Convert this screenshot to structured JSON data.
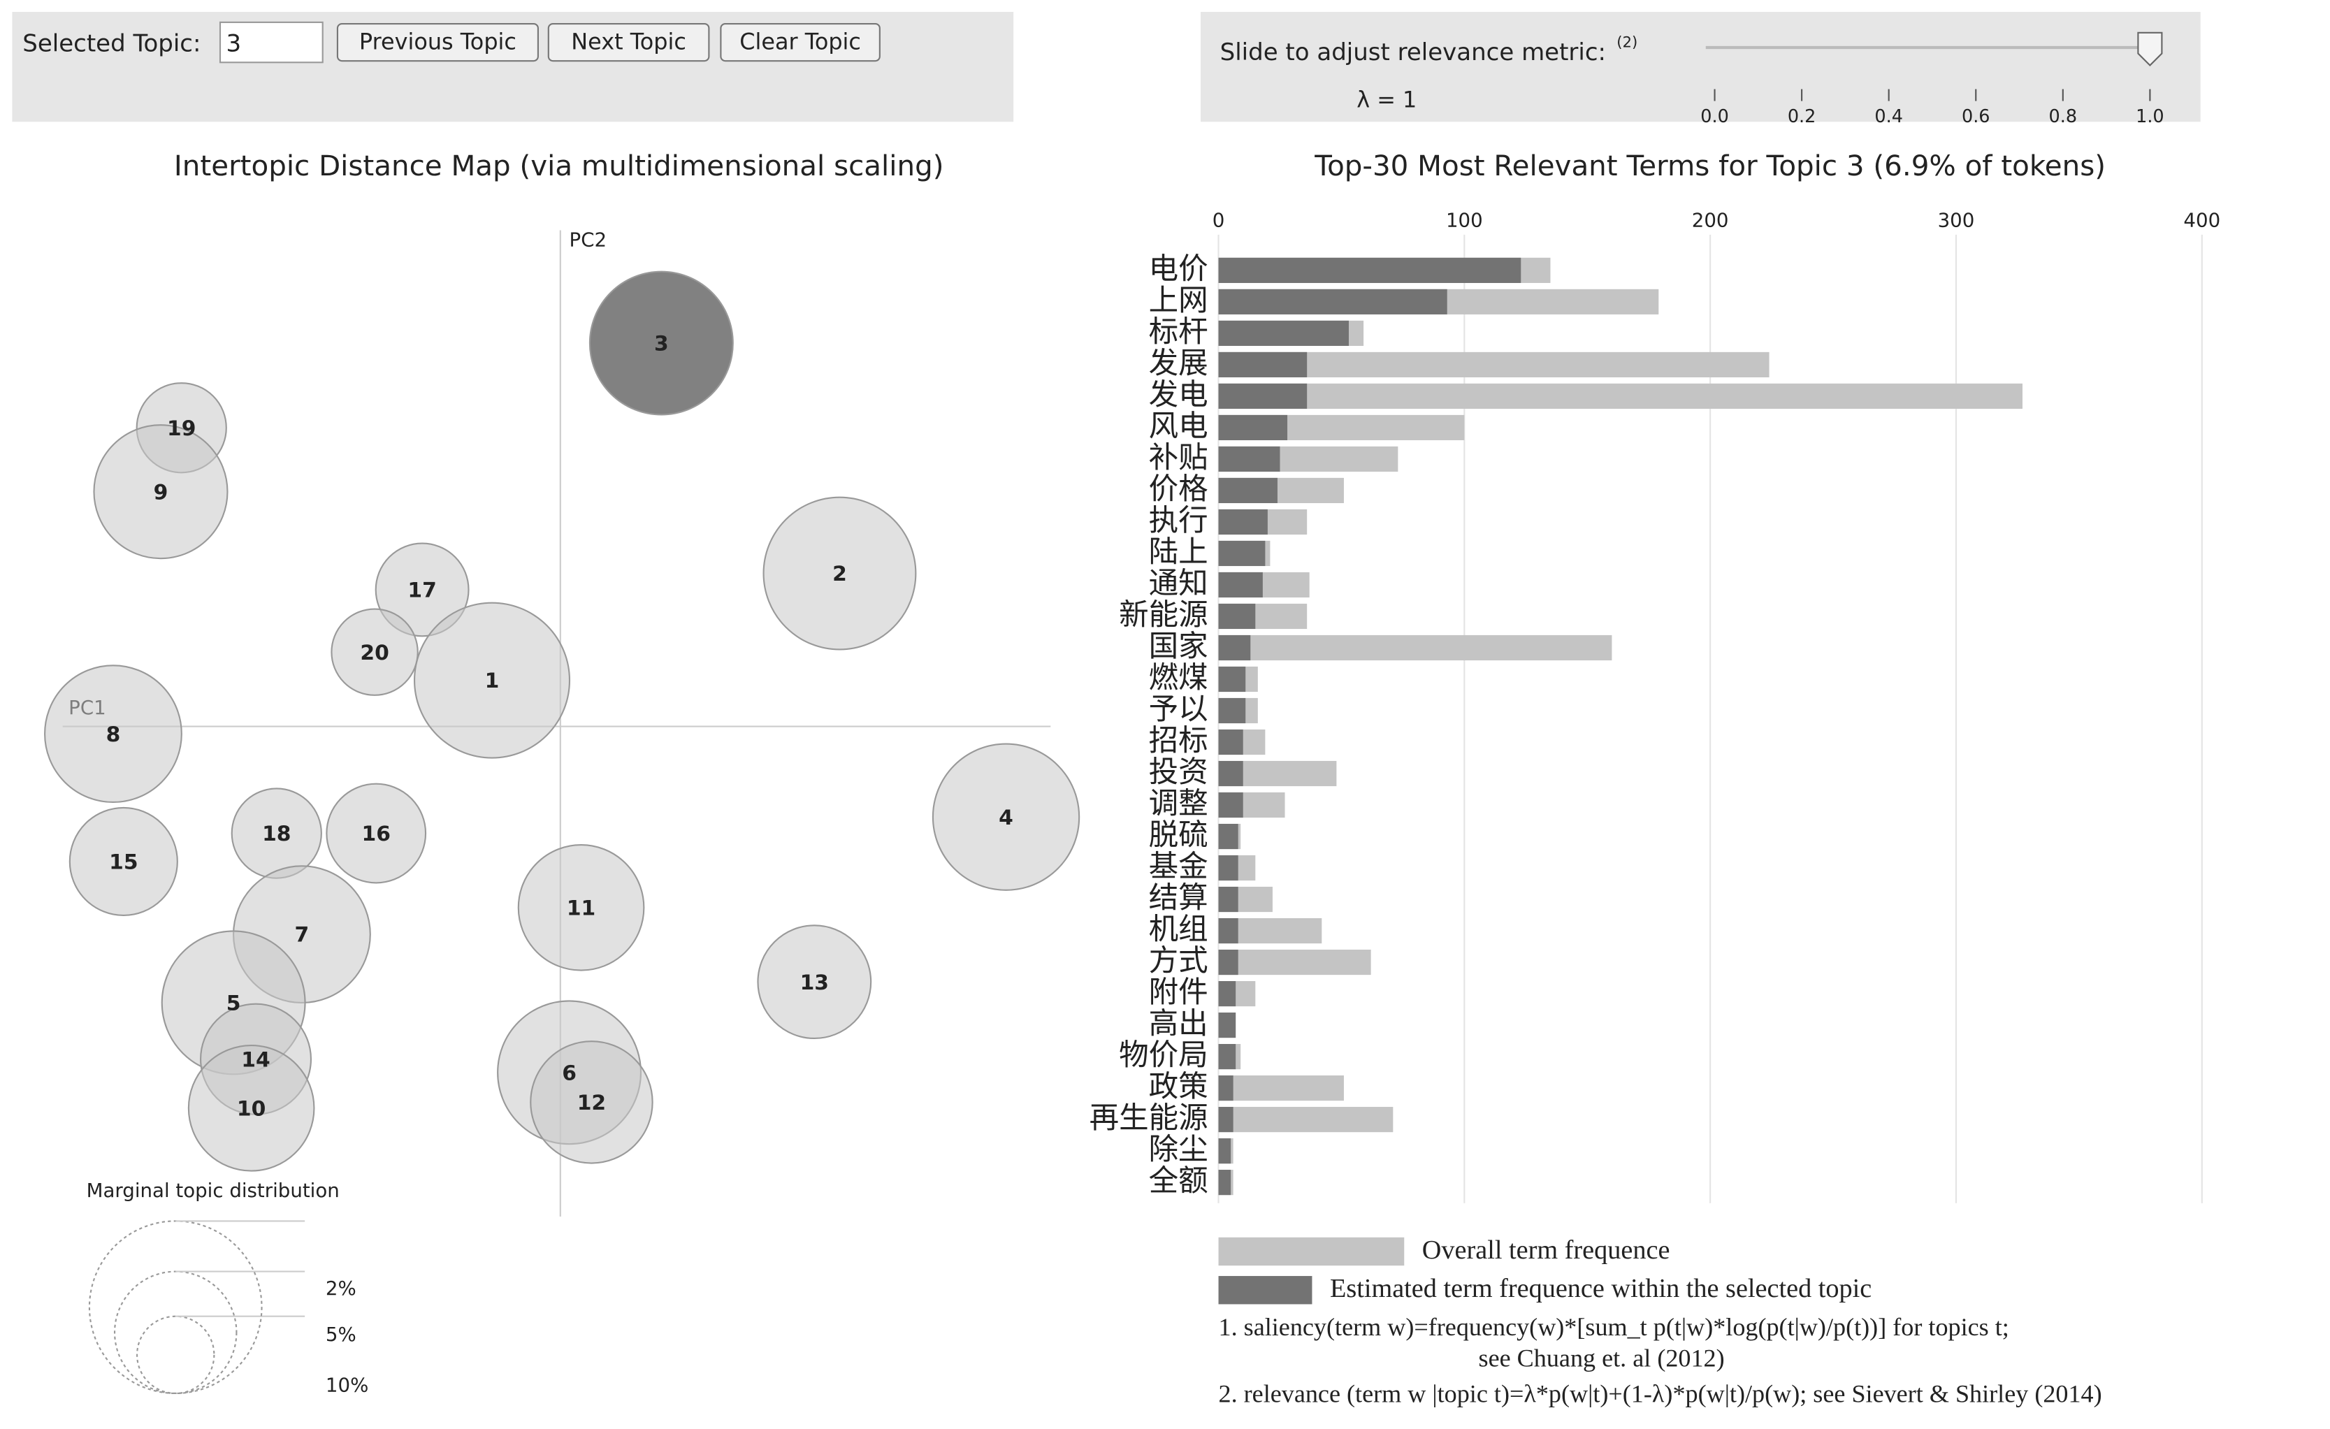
{
  "controls": {
    "selected_label": "Selected Topic:",
    "selected_topic": "3",
    "buttons": [
      "Previous Topic",
      "Next Topic",
      "Clear Topic"
    ]
  },
  "slider": {
    "label": "Slide to adjust relevance metric:",
    "note": "(2)",
    "lambda_label": "λ = 1",
    "value": 1,
    "min": 0,
    "max": 1,
    "ticks": [
      {
        "value": 0,
        "label": "0.0"
      },
      {
        "value": 0.2,
        "label": "0.2"
      },
      {
        "value": 0.4,
        "label": "0.4"
      },
      {
        "value": 0.6,
        "label": "0.6"
      },
      {
        "value": 0.8,
        "label": "0.8"
      },
      {
        "value": 1,
        "label": "1.0"
      }
    ]
  },
  "chart_data": [
    {
      "type": "bubble",
      "title": "Intertopic Distance Map (via multidimensional scaling)",
      "xlabel": "PC1",
      "ylabel": "PC2",
      "xlim": [
        -0.35,
        0.33
      ],
      "ylim": [
        -0.33,
        0.34
      ],
      "labels": [
        "3",
        "19",
        "9",
        "17",
        "20",
        "1",
        "2",
        "8",
        "4",
        "15",
        "18",
        "16",
        "7",
        "11",
        "13",
        "5",
        "14",
        "10",
        "6",
        "12"
      ],
      "x": [
        0.068,
        -0.255,
        -0.269,
        -0.093,
        -0.125,
        -0.046,
        0.188,
        -0.301,
        0.3,
        -0.294,
        -0.191,
        -0.124,
        -0.174,
        0.014,
        0.171,
        -0.22,
        -0.205,
        -0.208,
        0.006,
        0.021
      ],
      "y": [
        0.258,
        0.201,
        0.158,
        0.092,
        0.05,
        0.031,
        0.103,
        -0.005,
        -0.061,
        -0.091,
        -0.072,
        -0.072,
        -0.14,
        -0.122,
        -0.172,
        -0.186,
        -0.224,
        -0.257,
        -0.233,
        -0.253
      ],
      "sizes": [
        6.9,
        2.7,
        6.0,
        2.9,
        2.5,
        8.1,
        7.8,
        6.3,
        7.2,
        3.9,
        2.7,
        3.3,
        6.3,
        5.3,
        4.3,
        6.9,
        4.1,
        5.3,
        6.9,
        5.0
      ],
      "color": "#c9c9c9",
      "selected_color": "#7a7a7a",
      "legend_title": "Marginal topic distribution",
      "size_legend": [
        {
          "value": 2,
          "label": "2%"
        },
        {
          "value": 5,
          "label": "5%"
        },
        {
          "value": 10,
          "label": "10%"
        }
      ]
    },
    {
      "type": "bar",
      "orientation": "horizontal",
      "title": "Top-30 Most Relevant Terms for Topic 3 (6.9% of tokens)",
      "categories": [
        "电价",
        "上网",
        "标杆",
        "发展",
        "发电",
        "风电",
        "补贴",
        "价格",
        "执行",
        "陆上",
        "通知",
        "新能源",
        "国家",
        "燃煤",
        "予以",
        "招标",
        "投资",
        "调整",
        "脱硫",
        "基金",
        "结算",
        "机组",
        "方式",
        "附件",
        "高出",
        "物价局",
        "政策",
        "再生能源",
        "除尘",
        "全额"
      ],
      "series": [
        {
          "name": "Overall term frequence",
          "color": "#c4c4c4",
          "values": [
            135,
            179,
            59,
            224,
            327,
            100,
            73,
            51,
            36,
            21,
            37,
            36,
            160,
            16,
            16,
            19,
            48,
            27,
            9,
            15,
            22,
            42,
            62,
            15,
            7,
            9,
            51,
            71,
            6,
            6
          ]
        },
        {
          "name": "Estimated term frequence within the selected topic",
          "color": "#737373",
          "values": [
            123,
            93,
            53,
            36,
            36,
            28,
            25,
            24,
            20,
            19,
            18,
            15,
            13,
            11,
            11,
            10,
            10,
            10,
            8,
            8,
            8,
            8,
            8,
            7,
            7,
            7,
            6,
            6,
            5,
            5
          ]
        }
      ],
      "xlim": [
        0,
        400
      ],
      "xticks": [
        0,
        100,
        200,
        300,
        400
      ],
      "grid": true,
      "notes": [
        "1. saliency(term w)=frequency(w)*[sum_t p(t|w)*log(p(t|w)/p(t))] for topics t;",
        "see Chuang et. al (2012)",
        "2. relevance (term w |topic t)=λ*p(w|t)+(1-λ)*p(w|t)/p(w); see Sievert & Shirley (2014)"
      ]
    }
  ]
}
